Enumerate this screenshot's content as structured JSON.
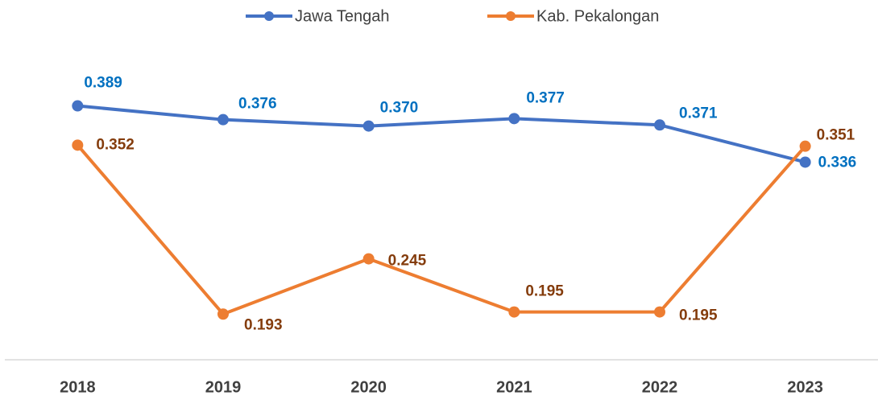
{
  "chart_data": {
    "type": "line",
    "categories": [
      "2018",
      "2019",
      "2020",
      "2021",
      "2022",
      "2023"
    ],
    "series": [
      {
        "name": "Jawa Tengah",
        "color": "#4472c4",
        "label_color": "#0070c0",
        "values": [
          0.389,
          0.376,
          0.37,
          0.377,
          0.371,
          0.336
        ],
        "value_labels": [
          "0.389",
          "0.376",
          "0.370",
          "0.377",
          "0.371",
          "0.336"
        ]
      },
      {
        "name": "Kab. Pekalongan",
        "color": "#ed7d31",
        "label_color": "#843c0c",
        "values": [
          0.352,
          0.193,
          0.245,
          0.195,
          0.195,
          0.351
        ],
        "value_labels": [
          "0.352",
          "0.193",
          "0.245",
          "0.195",
          "0.195",
          "0.351"
        ]
      }
    ],
    "ylim": [
      0.15,
      0.45
    ],
    "legend": "top"
  }
}
